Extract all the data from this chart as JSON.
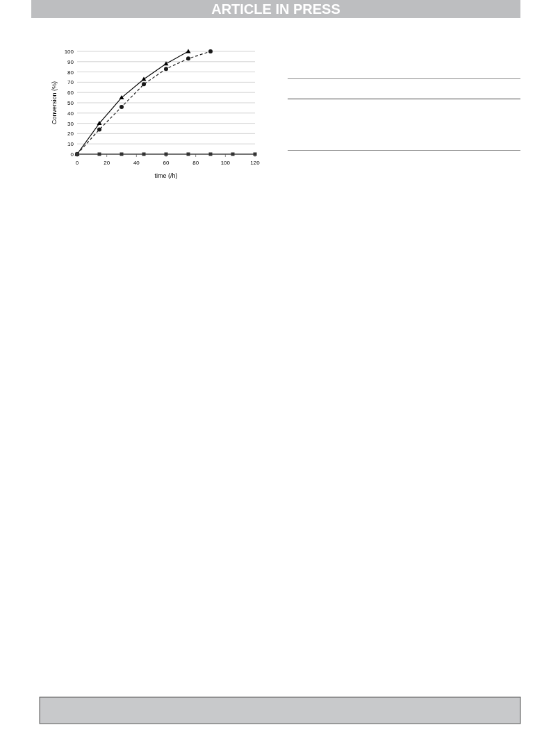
{
  "chart_data": {
    "type": "line",
    "xlabel": "time (/h)",
    "ylabel": "Conversion (%)",
    "annotations": [
      "ARTICLE IN PRESS"
    ],
    "xlim": [
      0,
      120
    ],
    "xticks": [
      0,
      20,
      40,
      60,
      80,
      100,
      120
    ],
    "ylim": [
      0,
      100
    ],
    "yticks": [
      0,
      10,
      20,
      30,
      40,
      50,
      60,
      70,
      80,
      90,
      100
    ],
    "grid": "y",
    "series": [
      {
        "color": "#000000",
        "marker": "triangle",
        "line_style": "solid",
        "x": [
          0,
          15,
          30,
          45,
          60,
          75
        ],
        "values": [
          0,
          30,
          55,
          73,
          88,
          100
        ]
      },
      {
        "color": "#1a1a1a",
        "marker": "circle",
        "line_style": "dashed",
        "x": [
          0,
          15,
          30,
          45,
          60,
          75,
          90
        ],
        "values": [
          0,
          24,
          46,
          68,
          83,
          93,
          100
        ]
      },
      {
        "color": "#333333",
        "marker": "square",
        "line_style": "solid",
        "x": [
          0,
          15,
          30,
          45,
          60,
          75,
          90,
          105,
          120
        ],
        "values": [
          0,
          0,
          0,
          0,
          0,
          0,
          0,
          0,
          0
        ]
      }
    ]
  }
}
